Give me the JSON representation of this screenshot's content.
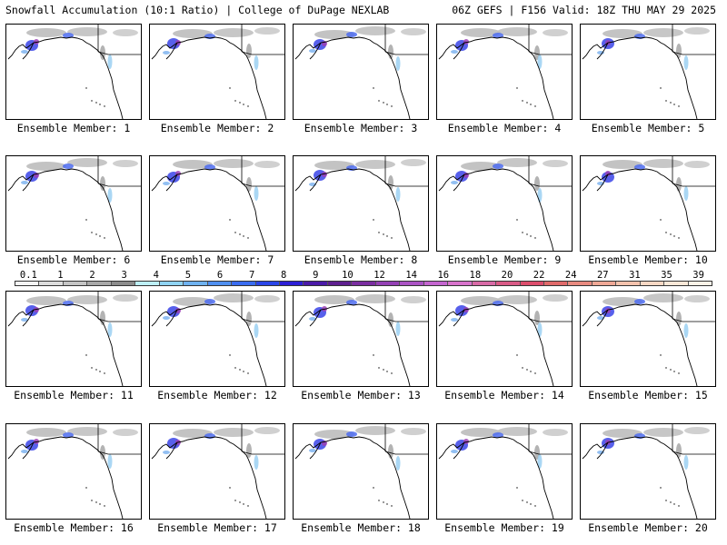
{
  "header": {
    "left": "Snowfall Accumulation (10:1 Ratio) | College of DuPage NEXLAB",
    "right": "06Z GEFS | F156 Valid: 18Z THU MAY 29 2025"
  },
  "colorbar": {
    "labels": [
      "0.1",
      "1",
      "2",
      "3",
      "4",
      "5",
      "6",
      "7",
      "8",
      "9",
      "10",
      "12",
      "14",
      "16",
      "18",
      "20",
      "22",
      "24",
      "27",
      "31",
      "35",
      "39"
    ],
    "colors": [
      "#f5f5f5",
      "#dcdcdc",
      "#c4c4c4",
      "#a8a8a8",
      "#8c8c8c",
      "#bdeff6",
      "#8fd3f3",
      "#6fb2f0",
      "#4f8ff0",
      "#3a6cf0",
      "#2a45e8",
      "#2d1fd6",
      "#4b1aa8",
      "#5e1f8f",
      "#7a2da0",
      "#9440b4",
      "#ab53c4",
      "#c465d0",
      "#d873cc",
      "#d86aa6",
      "#d95a86",
      "#dc4d6c",
      "#e06a6a",
      "#e88a80",
      "#efa896",
      "#f4c2ad",
      "#f8d8c4",
      "#fbe8d8",
      "#fdf3e8"
    ]
  },
  "members": [
    {
      "label": "Ensemble Member: 1"
    },
    {
      "label": "Ensemble Member: 2"
    },
    {
      "label": "Ensemble Member: 3"
    },
    {
      "label": "Ensemble Member: 4"
    },
    {
      "label": "Ensemble Member: 5"
    },
    {
      "label": "Ensemble Member: 6"
    },
    {
      "label": "Ensemble Member: 7"
    },
    {
      "label": "Ensemble Member: 8"
    },
    {
      "label": "Ensemble Member: 9"
    },
    {
      "label": "Ensemble Member: 10"
    },
    {
      "label": "Ensemble Member: 11"
    },
    {
      "label": "Ensemble Member: 12"
    },
    {
      "label": "Ensemble Member: 13"
    },
    {
      "label": "Ensemble Member: 14"
    },
    {
      "label": "Ensemble Member: 15"
    },
    {
      "label": "Ensemble Member: 16"
    },
    {
      "label": "Ensemble Member: 17"
    },
    {
      "label": "Ensemble Member: 18"
    },
    {
      "label": "Ensemble Member: 19"
    },
    {
      "label": "Ensemble Member: 20"
    }
  ]
}
